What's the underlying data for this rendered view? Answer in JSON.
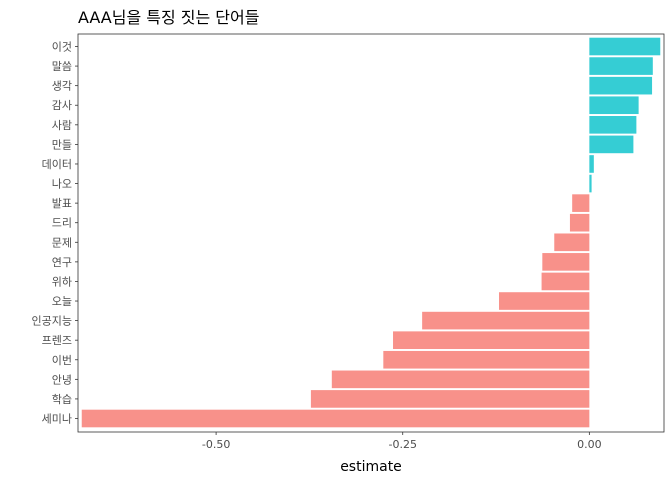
{
  "chart_data": {
    "type": "bar",
    "orientation": "horizontal",
    "title": "AAA님을 특징 짓는 단어들",
    "xlabel": "estimate",
    "ylabel": "",
    "xlim": [
      -0.685,
      0.1
    ],
    "xticks": [
      {
        "value": -0.5,
        "label": "-0.50"
      },
      {
        "value": -0.25,
        "label": "-0.25"
      },
      {
        "value": 0,
        "label": "0.00"
      }
    ],
    "grid": false,
    "legend": "none",
    "colors": {
      "positive": "#35CDD4",
      "negative": "#F8918A"
    },
    "categories": [
      "이것",
      "말씀",
      "생각",
      "감사",
      "사람",
      "만들",
      "데이터",
      "나오",
      "발표",
      "드리",
      "문제",
      "연구",
      "위하",
      "오늘",
      "인공지능",
      "프렌즈",
      "이번",
      "안녕",
      "학습",
      "세미나"
    ],
    "values": [
      0.095,
      0.085,
      0.084,
      0.066,
      0.063,
      0.059,
      0.006,
      0.003,
      -0.023,
      -0.026,
      -0.047,
      -0.063,
      -0.064,
      -0.121,
      -0.224,
      -0.263,
      -0.276,
      -0.345,
      -0.373,
      -0.68
    ]
  }
}
